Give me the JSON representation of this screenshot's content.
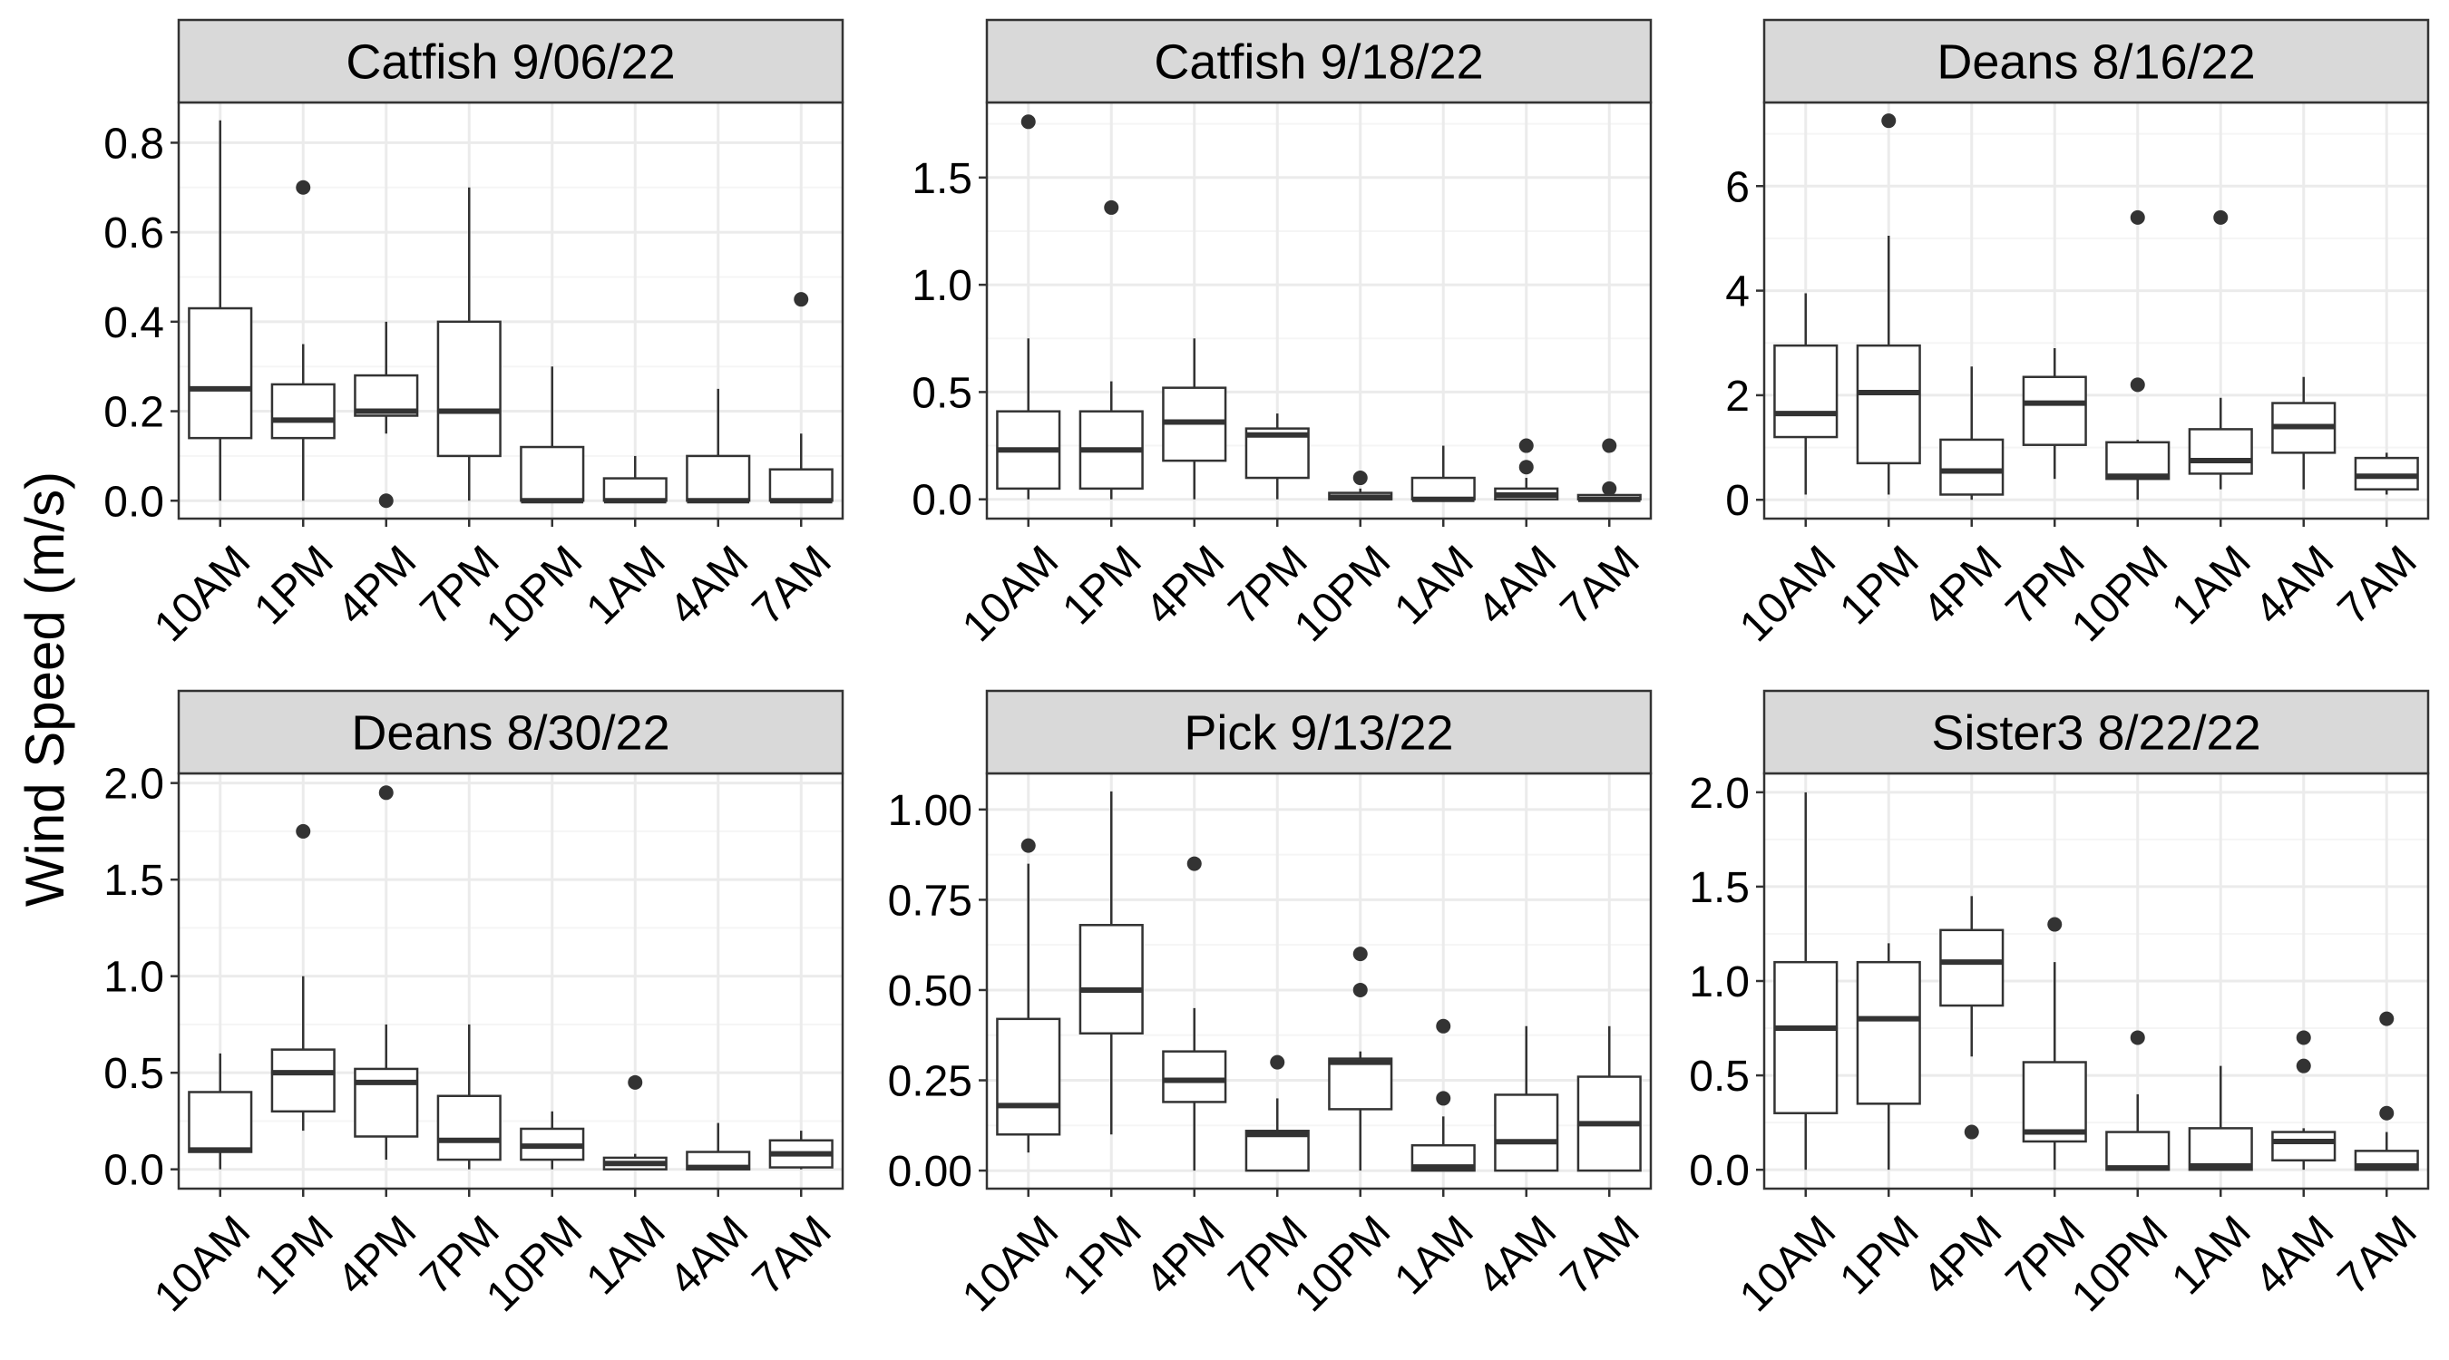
{
  "chart_data": {
    "type": "boxplot",
    "layout": "facet-grid-2x3",
    "ylabel": "Wind Speed (m/s)",
    "xlabel": "",
    "categories": [
      "10AM",
      "1PM",
      "4PM",
      "7PM",
      "10PM",
      "1AM",
      "4AM",
      "7AM"
    ],
    "grid": true,
    "panels": [
      {
        "title": "Catfish 9/06/22",
        "ylim": [
          -0.04,
          0.89
        ],
        "yticks": [
          0.0,
          0.2,
          0.4,
          0.6,
          0.8
        ],
        "ytick_labels": [
          "0.0",
          "0.2",
          "0.4",
          "0.6",
          "0.8"
        ],
        "boxes": [
          {
            "category": "10AM",
            "whisker_low": 0.0,
            "q1": 0.14,
            "median": 0.25,
            "q3": 0.43,
            "whisker_high": 0.85,
            "outliers": []
          },
          {
            "category": "1PM",
            "whisker_low": 0.0,
            "q1": 0.14,
            "median": 0.18,
            "q3": 0.26,
            "whisker_high": 0.35,
            "outliers": [
              0.7
            ]
          },
          {
            "category": "4PM",
            "whisker_low": 0.15,
            "q1": 0.19,
            "median": 0.2,
            "q3": 0.28,
            "whisker_high": 0.4,
            "outliers": [
              0.0
            ]
          },
          {
            "category": "7PM",
            "whisker_low": 0.0,
            "q1": 0.1,
            "median": 0.2,
            "q3": 0.4,
            "whisker_high": 0.7,
            "outliers": []
          },
          {
            "category": "10PM",
            "whisker_low": 0.0,
            "q1": 0.0,
            "median": 0.0,
            "q3": 0.12,
            "whisker_high": 0.3,
            "outliers": []
          },
          {
            "category": "1AM",
            "whisker_low": 0.0,
            "q1": 0.0,
            "median": 0.0,
            "q3": 0.05,
            "whisker_high": 0.1,
            "outliers": []
          },
          {
            "category": "4AM",
            "whisker_low": 0.0,
            "q1": 0.0,
            "median": 0.0,
            "q3": 0.1,
            "whisker_high": 0.25,
            "outliers": []
          },
          {
            "category": "7AM",
            "whisker_low": 0.0,
            "q1": 0.0,
            "median": 0.0,
            "q3": 0.07,
            "whisker_high": 0.15,
            "outliers": [
              0.45
            ]
          }
        ]
      },
      {
        "title": "Catfish 9/18/22",
        "ylim": [
          -0.09,
          1.85
        ],
        "yticks": [
          0.0,
          0.5,
          1.0,
          1.5
        ],
        "ytick_labels": [
          "0.0",
          "0.5",
          "1.0",
          "1.5"
        ],
        "boxes": [
          {
            "category": "10AM",
            "whisker_low": 0.0,
            "q1": 0.05,
            "median": 0.23,
            "q3": 0.41,
            "whisker_high": 0.75,
            "outliers": [
              1.76
            ]
          },
          {
            "category": "1PM",
            "whisker_low": 0.0,
            "q1": 0.05,
            "median": 0.23,
            "q3": 0.41,
            "whisker_high": 0.55,
            "outliers": [
              1.36
            ]
          },
          {
            "category": "4PM",
            "whisker_low": 0.0,
            "q1": 0.18,
            "median": 0.36,
            "q3": 0.52,
            "whisker_high": 0.75,
            "outliers": []
          },
          {
            "category": "7PM",
            "whisker_low": 0.0,
            "q1": 0.1,
            "median": 0.3,
            "q3": 0.33,
            "whisker_high": 0.4,
            "outliers": []
          },
          {
            "category": "10PM",
            "whisker_low": 0.0,
            "q1": 0.0,
            "median": 0.01,
            "q3": 0.03,
            "whisker_high": 0.05,
            "outliers": [
              0.1
            ]
          },
          {
            "category": "1AM",
            "whisker_low": 0.0,
            "q1": 0.0,
            "median": 0.0,
            "q3": 0.1,
            "whisker_high": 0.25,
            "outliers": []
          },
          {
            "category": "4AM",
            "whisker_low": 0.0,
            "q1": 0.0,
            "median": 0.02,
            "q3": 0.05,
            "whisker_high": 0.1,
            "outliers": [
              0.15,
              0.25
            ]
          },
          {
            "category": "7AM",
            "whisker_low": 0.0,
            "q1": 0.0,
            "median": 0.0,
            "q3": 0.02,
            "whisker_high": 0.03,
            "outliers": [
              0.05,
              0.25
            ]
          }
        ]
      },
      {
        "title": "Deans 8/16/22",
        "ylim": [
          -0.36,
          7.6
        ],
        "yticks": [
          0,
          2,
          4,
          6
        ],
        "ytick_labels": [
          "0",
          "2",
          "4",
          "6"
        ],
        "boxes": [
          {
            "category": "10AM",
            "whisker_low": 0.1,
            "q1": 1.2,
            "median": 1.65,
            "q3": 2.95,
            "whisker_high": 3.95,
            "outliers": []
          },
          {
            "category": "1PM",
            "whisker_low": 0.1,
            "q1": 0.7,
            "median": 2.05,
            "q3": 2.95,
            "whisker_high": 5.05,
            "outliers": [
              7.25
            ]
          },
          {
            "category": "4PM",
            "whisker_low": 0.0,
            "q1": 0.1,
            "median": 0.55,
            "q3": 1.15,
            "whisker_high": 2.55,
            "outliers": []
          },
          {
            "category": "7PM",
            "whisker_low": 0.4,
            "q1": 1.05,
            "median": 1.85,
            "q3": 2.35,
            "whisker_high": 2.9,
            "outliers": []
          },
          {
            "category": "10PM",
            "whisker_low": 0.0,
            "q1": 0.4,
            "median": 0.45,
            "q3": 1.1,
            "whisker_high": 1.15,
            "outliers": [
              2.2,
              5.4
            ]
          },
          {
            "category": "1AM",
            "whisker_low": 0.2,
            "q1": 0.5,
            "median": 0.75,
            "q3": 1.35,
            "whisker_high": 1.95,
            "outliers": [
              5.4
            ]
          },
          {
            "category": "4AM",
            "whisker_low": 0.2,
            "q1": 0.9,
            "median": 1.4,
            "q3": 1.85,
            "whisker_high": 2.35,
            "outliers": []
          },
          {
            "category": "7AM",
            "whisker_low": 0.1,
            "q1": 0.2,
            "median": 0.45,
            "q3": 0.8,
            "whisker_high": 0.9,
            "outliers": []
          }
        ]
      },
      {
        "title": "Deans 8/30/22",
        "ylim": [
          -0.1,
          2.05
        ],
        "yticks": [
          0.0,
          0.5,
          1.0,
          1.5,
          2.0
        ],
        "ytick_labels": [
          "0.0",
          "0.5",
          "1.0",
          "1.5",
          "2.0"
        ],
        "boxes": [
          {
            "category": "10AM",
            "whisker_low": 0.0,
            "q1": 0.09,
            "median": 0.1,
            "q3": 0.4,
            "whisker_high": 0.6,
            "outliers": []
          },
          {
            "category": "1PM",
            "whisker_low": 0.2,
            "q1": 0.3,
            "median": 0.5,
            "q3": 0.62,
            "whisker_high": 1.0,
            "outliers": [
              1.75
            ]
          },
          {
            "category": "4PM",
            "whisker_low": 0.05,
            "q1": 0.17,
            "median": 0.45,
            "q3": 0.52,
            "whisker_high": 0.75,
            "outliers": [
              1.95
            ]
          },
          {
            "category": "7PM",
            "whisker_low": 0.0,
            "q1": 0.05,
            "median": 0.15,
            "q3": 0.38,
            "whisker_high": 0.75,
            "outliers": []
          },
          {
            "category": "10PM",
            "whisker_low": 0.0,
            "q1": 0.05,
            "median": 0.12,
            "q3": 0.21,
            "whisker_high": 0.3,
            "outliers": []
          },
          {
            "category": "1AM",
            "whisker_low": 0.0,
            "q1": 0.0,
            "median": 0.03,
            "q3": 0.06,
            "whisker_high": 0.08,
            "outliers": [
              0.45
            ]
          },
          {
            "category": "4AM",
            "whisker_low": 0.0,
            "q1": 0.0,
            "median": 0.01,
            "q3": 0.09,
            "whisker_high": 0.24,
            "outliers": []
          },
          {
            "category": "7AM",
            "whisker_low": 0.0,
            "q1": 0.01,
            "median": 0.08,
            "q3": 0.15,
            "whisker_high": 0.2,
            "outliers": []
          }
        ]
      },
      {
        "title": "Pick 9/13/22",
        "ylim": [
          -0.05,
          1.1
        ],
        "yticks": [
          0.0,
          0.25,
          0.5,
          0.75,
          1.0
        ],
        "ytick_labels": [
          "0.00",
          "0.25",
          "0.50",
          "0.75",
          "1.00"
        ],
        "boxes": [
          {
            "category": "10AM",
            "whisker_low": 0.05,
            "q1": 0.1,
            "median": 0.18,
            "q3": 0.42,
            "whisker_high": 0.85,
            "outliers": [
              0.9
            ]
          },
          {
            "category": "1PM",
            "whisker_low": 0.1,
            "q1": 0.38,
            "median": 0.5,
            "q3": 0.68,
            "whisker_high": 1.05,
            "outliers": []
          },
          {
            "category": "4PM",
            "whisker_low": 0.0,
            "q1": 0.19,
            "median": 0.25,
            "q3": 0.33,
            "whisker_high": 0.45,
            "outliers": [
              0.85
            ]
          },
          {
            "category": "7PM",
            "whisker_low": 0.0,
            "q1": 0.0,
            "median": 0.1,
            "q3": 0.11,
            "whisker_high": 0.2,
            "outliers": [
              0.3
            ]
          },
          {
            "category": "10PM",
            "whisker_low": 0.0,
            "q1": 0.17,
            "median": 0.3,
            "q3": 0.31,
            "whisker_high": 0.33,
            "outliers": [
              0.5,
              0.6
            ]
          },
          {
            "category": "1AM",
            "whisker_low": 0.0,
            "q1": 0.0,
            "median": 0.01,
            "q3": 0.07,
            "whisker_high": 0.15,
            "outliers": [
              0.2,
              0.4
            ]
          },
          {
            "category": "4AM",
            "whisker_low": 0.0,
            "q1": 0.0,
            "median": 0.08,
            "q3": 0.21,
            "whisker_high": 0.4,
            "outliers": []
          },
          {
            "category": "7AM",
            "whisker_low": 0.0,
            "q1": 0.0,
            "median": 0.13,
            "q3": 0.26,
            "whisker_high": 0.4,
            "outliers": []
          }
        ]
      },
      {
        "title": "Sister3 8/22/22",
        "ylim": [
          -0.1,
          2.1
        ],
        "yticks": [
          0.0,
          0.5,
          1.0,
          1.5,
          2.0
        ],
        "ytick_labels": [
          "0.0",
          "0.5",
          "1.0",
          "1.5",
          "2.0"
        ],
        "boxes": [
          {
            "category": "10AM",
            "whisker_low": 0.0,
            "q1": 0.3,
            "median": 0.75,
            "q3": 1.1,
            "whisker_high": 2.0,
            "outliers": []
          },
          {
            "category": "1PM",
            "whisker_low": 0.0,
            "q1": 0.35,
            "median": 0.8,
            "q3": 1.1,
            "whisker_high": 1.2,
            "outliers": []
          },
          {
            "category": "4PM",
            "whisker_low": 0.6,
            "q1": 0.87,
            "median": 1.1,
            "q3": 1.27,
            "whisker_high": 1.45,
            "outliers": [
              0.2
            ]
          },
          {
            "category": "7PM",
            "whisker_low": 0.0,
            "q1": 0.15,
            "median": 0.2,
            "q3": 0.57,
            "whisker_high": 1.1,
            "outliers": [
              1.3
            ]
          },
          {
            "category": "10PM",
            "whisker_low": 0.0,
            "q1": 0.0,
            "median": 0.01,
            "q3": 0.2,
            "whisker_high": 0.4,
            "outliers": [
              0.7
            ]
          },
          {
            "category": "1AM",
            "whisker_low": 0.0,
            "q1": 0.0,
            "median": 0.02,
            "q3": 0.22,
            "whisker_high": 0.55,
            "outliers": []
          },
          {
            "category": "4AM",
            "whisker_low": 0.0,
            "q1": 0.05,
            "median": 0.15,
            "q3": 0.2,
            "whisker_high": 0.22,
            "outliers": [
              0.55,
              0.7
            ]
          },
          {
            "category": "7AM",
            "whisker_low": 0.0,
            "q1": 0.0,
            "median": 0.02,
            "q3": 0.1,
            "whisker_high": 0.2,
            "outliers": [
              0.3,
              0.8
            ]
          }
        ]
      }
    ]
  },
  "colors": {
    "strip_fill": "#d9d9d9",
    "border": "#333333",
    "grid_major": "#ebebeb",
    "grid_minor": "#f5f5f5",
    "box_line": "#333333",
    "outlier": "#333333"
  }
}
